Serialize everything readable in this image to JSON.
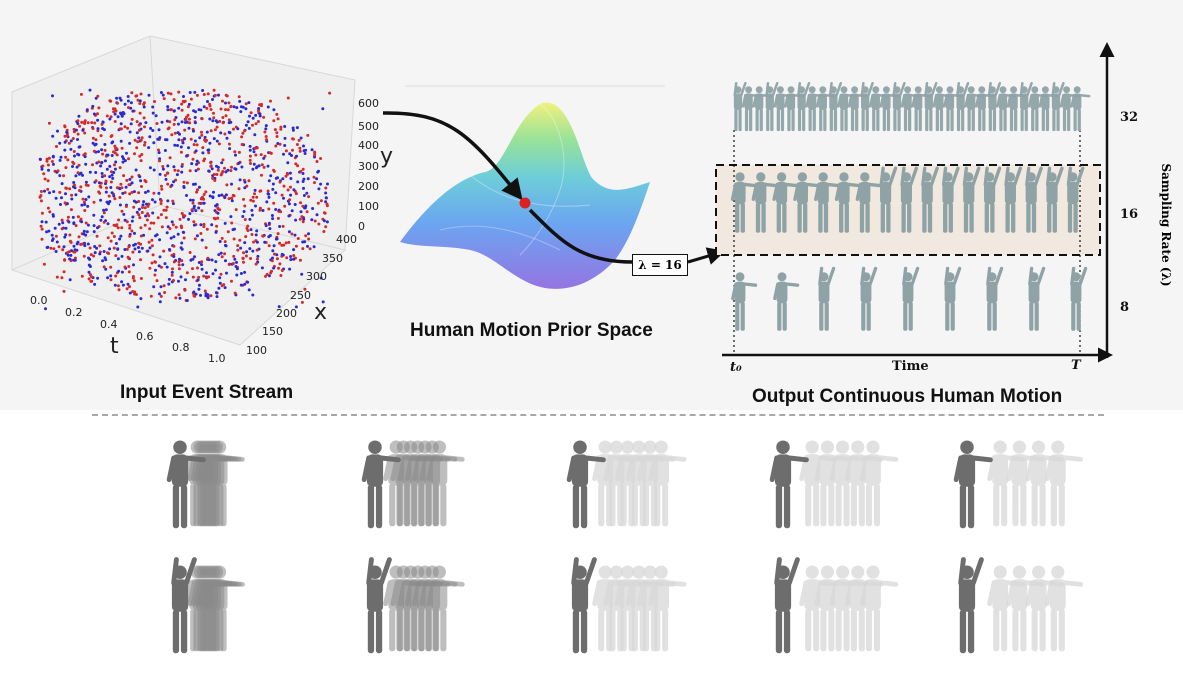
{
  "panels": {
    "input_caption": "Input Event Stream",
    "prior_caption": "Human Motion Prior Space",
    "output_caption": "Output Continuous Human Motion"
  },
  "scatter_axes": {
    "t_label": "t",
    "x_label": "x",
    "y_label": "y",
    "t_ticks": [
      "0.0",
      "0.2",
      "0.4",
      "0.6",
      "0.8",
      "1.0"
    ],
    "x_ticks": [
      "100",
      "150",
      "200",
      "250",
      "300",
      "350",
      "400"
    ],
    "y_ticks": [
      "600",
      "500",
      "400",
      "300",
      "200",
      "100",
      "0"
    ],
    "colors": {
      "positive": "#d42a2a",
      "negative": "#2a2ad4"
    }
  },
  "prior": {
    "lambda_label": "λ = 16",
    "point_color": "#e02020"
  },
  "output_plot": {
    "y_axis_label": "Sampling Rate (λ)",
    "rates": [
      "32",
      "16",
      "8"
    ],
    "x_axis_label": "Time",
    "t_start": "t₀",
    "t_end": "T",
    "highlight_color": "#f1e9df"
  },
  "gallery": {
    "rows": 2,
    "columns": 5,
    "description_colors": {
      "dark": "#6d6d6d",
      "ghost": "#d8d8d8"
    }
  }
}
